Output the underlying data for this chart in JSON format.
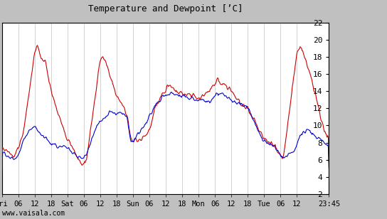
{
  "title": "Temperature and Dewpoint [’C]",
  "ylim": [
    2,
    22
  ],
  "yticks": [
    2,
    4,
    6,
    8,
    10,
    12,
    14,
    16,
    18,
    20,
    22
  ],
  "x_tick_labels": [
    "Fri",
    "06",
    "12",
    "18",
    "Sat",
    "06",
    "12",
    "18",
    "Sun",
    "06",
    "12",
    "18",
    "Mon",
    "06",
    "12",
    "18",
    "Tue",
    "06",
    "12",
    "23:45"
  ],
  "x_tick_positions": [
    0,
    6,
    12,
    18,
    24,
    30,
    36,
    42,
    48,
    54,
    60,
    66,
    72,
    78,
    84,
    90,
    96,
    102,
    108,
    119.75
  ],
  "watermark": "www.vaisala.com",
  "temp_color": "#cc0000",
  "dewp_color": "#0000cc",
  "plot_bg": "#ffffff",
  "fig_bg": "#c0c0c0",
  "grid_color": "#c0c0c0",
  "n_points": 500,
  "xlim": [
    0,
    119.75
  ],
  "temp_keypoints": [
    [
      0,
      7.5
    ],
    [
      2,
      7.0
    ],
    [
      4,
      6.5
    ],
    [
      6,
      7.5
    ],
    [
      8,
      9.5
    ],
    [
      12,
      18.5
    ],
    [
      13,
      19.5
    ],
    [
      14,
      18.0
    ],
    [
      16,
      17.5
    ],
    [
      18,
      14.0
    ],
    [
      22,
      10.0
    ],
    [
      24,
      8.5
    ],
    [
      29,
      5.5
    ],
    [
      30,
      5.8
    ],
    [
      31,
      6.0
    ],
    [
      36,
      17.8
    ],
    [
      37,
      18.2
    ],
    [
      38,
      17.5
    ],
    [
      39,
      16.5
    ],
    [
      42,
      13.5
    ],
    [
      44,
      12.5
    ],
    [
      46,
      11.0
    ],
    [
      47,
      8.5
    ],
    [
      48,
      8.0
    ],
    [
      51,
      8.5
    ],
    [
      54,
      9.5
    ],
    [
      56,
      12.0
    ],
    [
      60,
      14.5
    ],
    [
      61,
      14.8
    ],
    [
      63,
      14.2
    ],
    [
      65,
      13.8
    ],
    [
      70,
      13.5
    ],
    [
      72,
      13.0
    ],
    [
      78,
      14.8
    ],
    [
      79,
      15.5
    ],
    [
      80,
      15.0
    ],
    [
      82,
      14.5
    ],
    [
      84,
      14.2
    ],
    [
      86,
      13.0
    ],
    [
      88,
      12.5
    ],
    [
      90,
      12.0
    ],
    [
      96,
      8.5
    ],
    [
      100,
      7.5
    ],
    [
      102,
      6.5
    ],
    [
      103,
      6.2
    ],
    [
      108,
      18.5
    ],
    [
      109,
      19.2
    ],
    [
      110,
      19.0
    ],
    [
      113,
      16.0
    ],
    [
      116,
      12.0
    ],
    [
      118,
      9.5
    ],
    [
      119.75,
      8.5
    ]
  ],
  "dewp_keypoints": [
    [
      0,
      7.0
    ],
    [
      2,
      6.5
    ],
    [
      4,
      6.0
    ],
    [
      6,
      6.5
    ],
    [
      8,
      8.5
    ],
    [
      10,
      9.5
    ],
    [
      12,
      10.0
    ],
    [
      14,
      9.0
    ],
    [
      16,
      8.5
    ],
    [
      18,
      8.0
    ],
    [
      20,
      7.5
    ],
    [
      22,
      7.5
    ],
    [
      24,
      7.5
    ],
    [
      29,
      6.0
    ],
    [
      30,
      6.2
    ],
    [
      31,
      6.5
    ],
    [
      34,
      9.5
    ],
    [
      36,
      10.5
    ],
    [
      38,
      11.0
    ],
    [
      40,
      11.5
    ],
    [
      42,
      11.5
    ],
    [
      44,
      11.5
    ],
    [
      46,
      11.0
    ],
    [
      47,
      8.0
    ],
    [
      48,
      8.0
    ],
    [
      51,
      9.5
    ],
    [
      54,
      11.0
    ],
    [
      56,
      12.5
    ],
    [
      60,
      13.5
    ],
    [
      62,
      13.8
    ],
    [
      64,
      13.5
    ],
    [
      66,
      13.5
    ],
    [
      70,
      13.2
    ],
    [
      72,
      13.0
    ],
    [
      76,
      12.8
    ],
    [
      78,
      13.5
    ],
    [
      80,
      13.8
    ],
    [
      81,
      14.0
    ],
    [
      82,
      13.5
    ],
    [
      84,
      13.0
    ],
    [
      86,
      12.5
    ],
    [
      88,
      12.5
    ],
    [
      90,
      12.0
    ],
    [
      96,
      8.0
    ],
    [
      100,
      7.5
    ],
    [
      102,
      6.5
    ],
    [
      103,
      6.2
    ],
    [
      107,
      7.0
    ],
    [
      109,
      8.5
    ],
    [
      110,
      9.0
    ],
    [
      112,
      9.5
    ],
    [
      114,
      9.0
    ],
    [
      116,
      8.5
    ],
    [
      118,
      8.0
    ],
    [
      119.75,
      7.5
    ]
  ]
}
